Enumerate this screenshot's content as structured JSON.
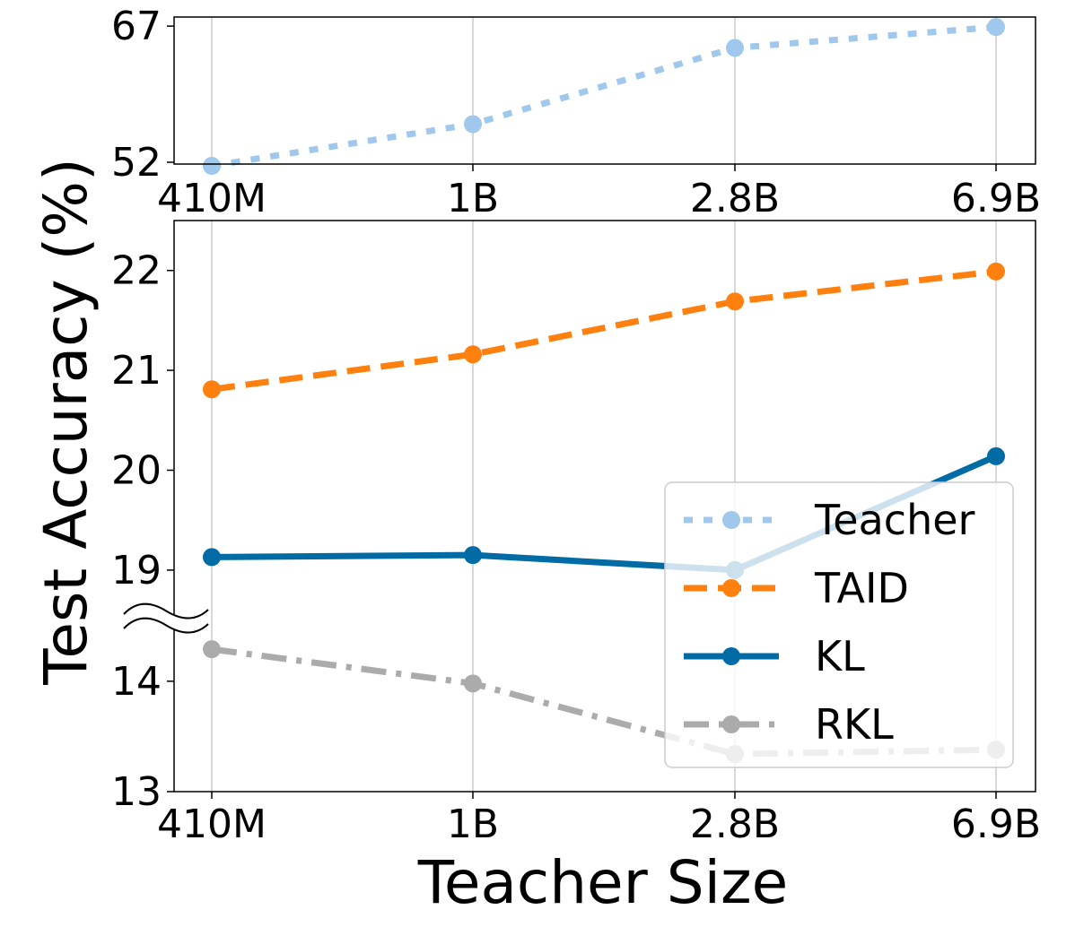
{
  "chart_data": {
    "type": "line",
    "xlabel": "Teacher Size",
    "ylabel": "Test Accuracy (%)",
    "categories": [
      "410M",
      "1B",
      "2.8B",
      "6.9B"
    ],
    "top_panel": {
      "ylim": [
        51.8,
        68.0
      ],
      "yticks": [
        52,
        67
      ],
      "series": [
        {
          "name": "Teacher",
          "color": "#a0c8ec",
          "style": "dotted",
          "values": [
            51.6,
            56.2,
            64.6,
            66.9
          ]
        }
      ]
    },
    "bottom_panel": {
      "broken_axis": true,
      "upper_ylim": [
        18.55,
        22.5
      ],
      "upper_yticks": [
        19,
        20,
        21,
        22
      ],
      "lower_ylim": [
        13.0,
        14.6
      ],
      "lower_yticks": [
        13,
        14
      ],
      "series": [
        {
          "name": "TAID",
          "color": "#ff800e",
          "style": "dashed",
          "values": [
            20.81,
            21.16,
            21.69,
            21.99
          ]
        },
        {
          "name": "KL",
          "color": "#006ba4",
          "style": "solid",
          "values": [
            19.13,
            19.15,
            19.0,
            20.14
          ]
        },
        {
          "name": "RKL",
          "color": "#ababab",
          "style": "dashdot",
          "values": [
            14.29,
            13.98,
            13.34,
            13.38
          ]
        }
      ]
    },
    "grid": "vertical",
    "legend": {
      "position": "lower-right",
      "entries": [
        "Teacher",
        "TAID",
        "KL",
        "RKL"
      ]
    }
  }
}
